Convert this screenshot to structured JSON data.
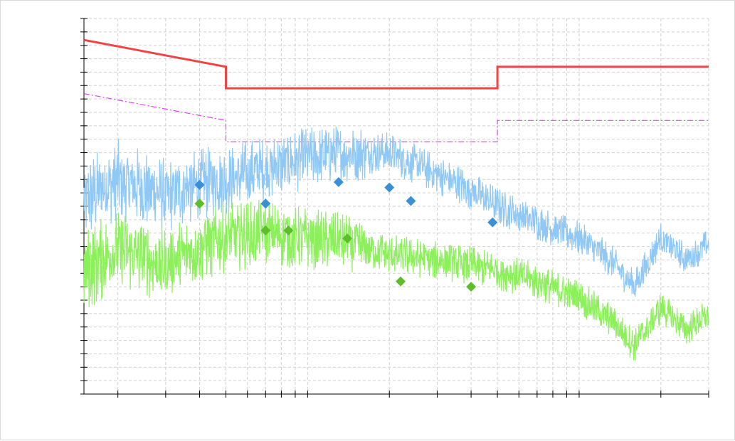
{
  "chart_data": {
    "type": "line",
    "title": "",
    "xlabel": "",
    "ylabel": "",
    "xscale": "log",
    "xlim": [
      0.15,
      30
    ],
    "ylim": [
      0,
      140
    ],
    "grid": true,
    "legend": "none",
    "colors": {
      "limit": "#ef4444",
      "limit_dashed": "#e040fb",
      "peak_trace": "#90c8f5",
      "avg_trace": "#8cf05a",
      "peak_marker": "#3a8fd6",
      "avg_marker": "#5cbf2a",
      "grid": "#d0d0d0",
      "axis": "#000000"
    },
    "series": [
      {
        "style": "solid",
        "x": [
          0.15,
          0.5,
          0.5,
          5,
          5,
          30
        ],
        "y": [
          132,
          122,
          114,
          114,
          122,
          122
        ]
      },
      {
        "style": "dash-dot",
        "x": [
          0.15,
          0.5,
          0.5,
          5,
          5,
          30
        ],
        "y": [
          112,
          102,
          94,
          94,
          102,
          102
        ]
      },
      {
        "style": "noisy-trace",
        "x": [
          0.15,
          0.2,
          0.3,
          0.4,
          0.5,
          0.7,
          1,
          1.5,
          2,
          3,
          4,
          5,
          7,
          10,
          13,
          16,
          20,
          25,
          30
        ],
        "y": [
          72,
          80,
          74,
          78,
          80,
          84,
          88,
          90,
          90,
          82,
          76,
          70,
          64,
          58,
          50,
          40,
          58,
          50,
          56
        ]
      },
      {
        "style": "noisy-trace",
        "x": [
          0.15,
          0.2,
          0.3,
          0.4,
          0.5,
          0.7,
          1,
          1.5,
          2,
          3,
          4,
          5,
          7,
          10,
          13,
          16,
          20,
          25,
          30
        ],
        "y": [
          46,
          54,
          48,
          55,
          58,
          60,
          58,
          56,
          52,
          50,
          48,
          46,
          42,
          36,
          28,
          18,
          32,
          24,
          30
        ]
      },
      {
        "style": "markers",
        "x": [
          0.4,
          0.7,
          1.3,
          2,
          2.4,
          4.8
        ],
        "y": [
          78,
          71,
          79,
          77,
          72,
          64
        ]
      },
      {
        "style": "markers",
        "x": [
          0.4,
          0.7,
          0.85,
          1.4,
          2.2,
          4
        ],
        "y": [
          71,
          61,
          61,
          58,
          42,
          40
        ]
      }
    ]
  }
}
